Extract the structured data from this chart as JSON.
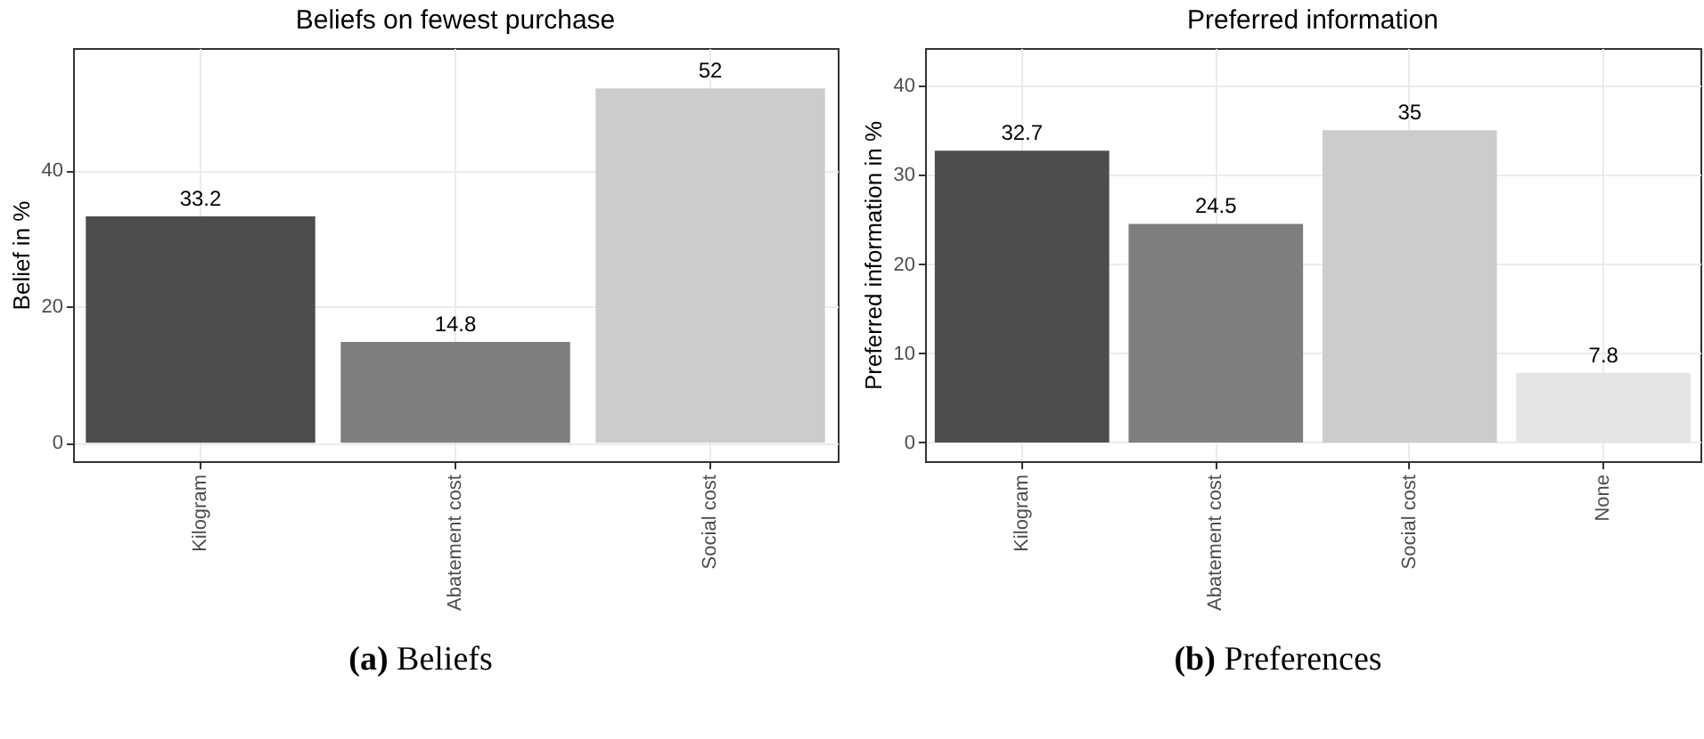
{
  "chart_data": [
    {
      "type": "bar",
      "title": "Beliefs on fewest purchase",
      "ylabel": "Belief in %",
      "categories": [
        "Kilogram",
        "Abatement cost",
        "Social cost"
      ],
      "values": [
        33.2,
        14.8,
        52
      ],
      "colors": [
        "#4d4d4d",
        "#7f7f7f",
        "#cccccc"
      ],
      "ylim": [
        -2.7,
        57.9
      ],
      "yticks": [
        0,
        20,
        40
      ],
      "grid": true,
      "data_labels": true,
      "annotations": [
        "(a) Beliefs"
      ]
    },
    {
      "type": "bar",
      "title": "Preferred information",
      "ylabel": "Preferred information in %",
      "categories": [
        "Kilogram",
        "Abatement cost",
        "Social cost",
        "None"
      ],
      "values": [
        32.7,
        24.5,
        35,
        7.8
      ],
      "colors": [
        "#4d4d4d",
        "#7f7f7f",
        "#cccccc",
        "#e5e5e5"
      ],
      "ylim": [
        -2.1,
        44.2
      ],
      "yticks": [
        0,
        10,
        20,
        30,
        40
      ],
      "grid": true,
      "data_labels": true,
      "annotations": [
        "(b) Preferences"
      ]
    }
  ]
}
